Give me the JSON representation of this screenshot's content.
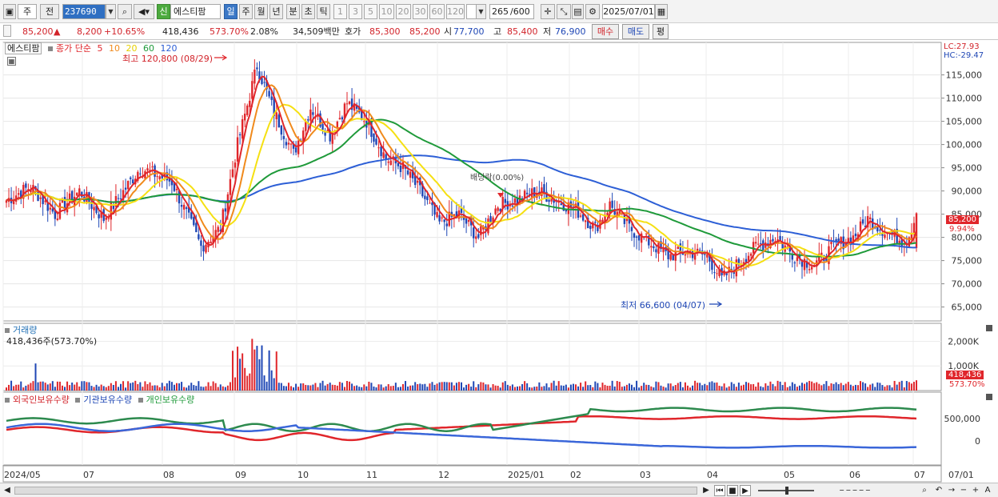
{
  "toolbar": {
    "market": "주",
    "prev": "전",
    "code": "237690",
    "name_flag": "신",
    "stock_name": "에스티팜",
    "periods": [
      "일",
      "주",
      "월",
      "년",
      "분",
      "초",
      "틱"
    ],
    "active_period": "일",
    "intervals": [
      "1",
      "3",
      "5",
      "10",
      "20",
      "30",
      "60",
      "120"
    ],
    "count": "265",
    "count_total": "/600",
    "date": "2025/07/01"
  },
  "quote": {
    "price": "85,200",
    "change_arrow": "▲",
    "change": "8,200",
    "change_pct": "+10.65%",
    "volume": "418,436",
    "volume_ratio": "573.70%",
    "turnover_ratio": "2.08%",
    "amount": "34,509백만",
    "ask_label": "호가",
    "ask1": "85,300",
    "ask2": "85,200",
    "open_label": "시",
    "open": "77,700",
    "high_label": "고",
    "high": "85,400",
    "low_label": "저",
    "low": "76,900",
    "buy_label": "매수",
    "sell_label": "매도",
    "eval_label": "평"
  },
  "legend": {
    "stock": "에스티팜",
    "ma_label": "종가 단순",
    "ma5": "5",
    "ma10": "10",
    "ma20": "20",
    "ma60": "60",
    "ma120": "120",
    "high_note": "최고 120,800 (08/29)",
    "low_note": "최저 66,600 (04/07)",
    "event_note": "배당락(0.00%)",
    "lc": "LC:27.93",
    "hc": "HC:-29.47",
    "current_price_tag": "85,200",
    "current_pct_tag": "9.94%",
    "volume_title": "거래량",
    "volume_value": "418,436주(573.70%)",
    "volume_tag": "418,436",
    "volume_tag_pct": "573.70%",
    "holdings_foreign": "외국인보유수량",
    "holdings_inst": "기관보유수량",
    "holdings_indiv": "개인보유수량"
  },
  "colors": {
    "up": "#e0262b",
    "down": "#1f47b5",
    "ma5": "#e0262b",
    "ma10": "#f08a1c",
    "ma20": "#f5e012",
    "ma60": "#1f9a3a",
    "ma120": "#2d5fd6",
    "foreign": "#2d8a4e",
    "inst": "#3a66d9",
    "indiv": "#e0262b"
  },
  "axis": {
    "price_ticks": [
      "115,000",
      "110,000",
      "105,000",
      "100,000",
      "95,000",
      "90,000",
      "85,000",
      "80,000",
      "75,000",
      "70,000",
      "65,000"
    ],
    "volume_ticks": [
      "2,000K",
      "1,000K"
    ],
    "holdings_ticks": [
      "500,000",
      "0"
    ],
    "date_ticks": [
      "2024/05",
      "07",
      "08",
      "09",
      "10",
      "11",
      "12",
      "2025/01",
      "02",
      "03",
      "04",
      "05",
      "06",
      "07",
      "07/01"
    ]
  },
  "chart_data": {
    "type": "candlestick",
    "ylim": [
      62000,
      122000
    ],
    "anchors_close": [
      [
        0,
        88000
      ],
      [
        10,
        91000
      ],
      [
        20,
        85000
      ],
      [
        30,
        90000
      ],
      [
        40,
        84000
      ],
      [
        55,
        95000
      ],
      [
        68,
        92000
      ],
      [
        80,
        78000
      ],
      [
        88,
        82000
      ],
      [
        95,
        100000
      ],
      [
        103,
        117000
      ],
      [
        110,
        107000
      ],
      [
        118,
        98000
      ],
      [
        125,
        108000
      ],
      [
        133,
        102000
      ],
      [
        140,
        109000
      ],
      [
        148,
        105000
      ],
      [
        156,
        97000
      ],
      [
        163,
        95000
      ],
      [
        170,
        90000
      ],
      [
        178,
        83000
      ],
      [
        186,
        85000
      ],
      [
        194,
        80000
      ],
      [
        202,
        87000
      ],
      [
        210,
        88000
      ],
      [
        218,
        90000
      ],
      [
        226,
        88000
      ],
      [
        234,
        86000
      ],
      [
        242,
        82000
      ],
      [
        248,
        87000
      ],
      [
        256,
        82000
      ],
      [
        264,
        79000
      ],
      [
        272,
        76000
      ],
      [
        280,
        77000
      ],
      [
        288,
        76000
      ],
      [
        294,
        71000
      ],
      [
        300,
        74000
      ],
      [
        308,
        78000
      ],
      [
        316,
        80000
      ],
      [
        324,
        76000
      ],
      [
        332,
        74000
      ],
      [
        340,
        78000
      ],
      [
        348,
        80000
      ],
      [
        354,
        84000
      ],
      [
        362,
        81000
      ],
      [
        370,
        79000
      ],
      [
        374,
        85200
      ]
    ]
  }
}
